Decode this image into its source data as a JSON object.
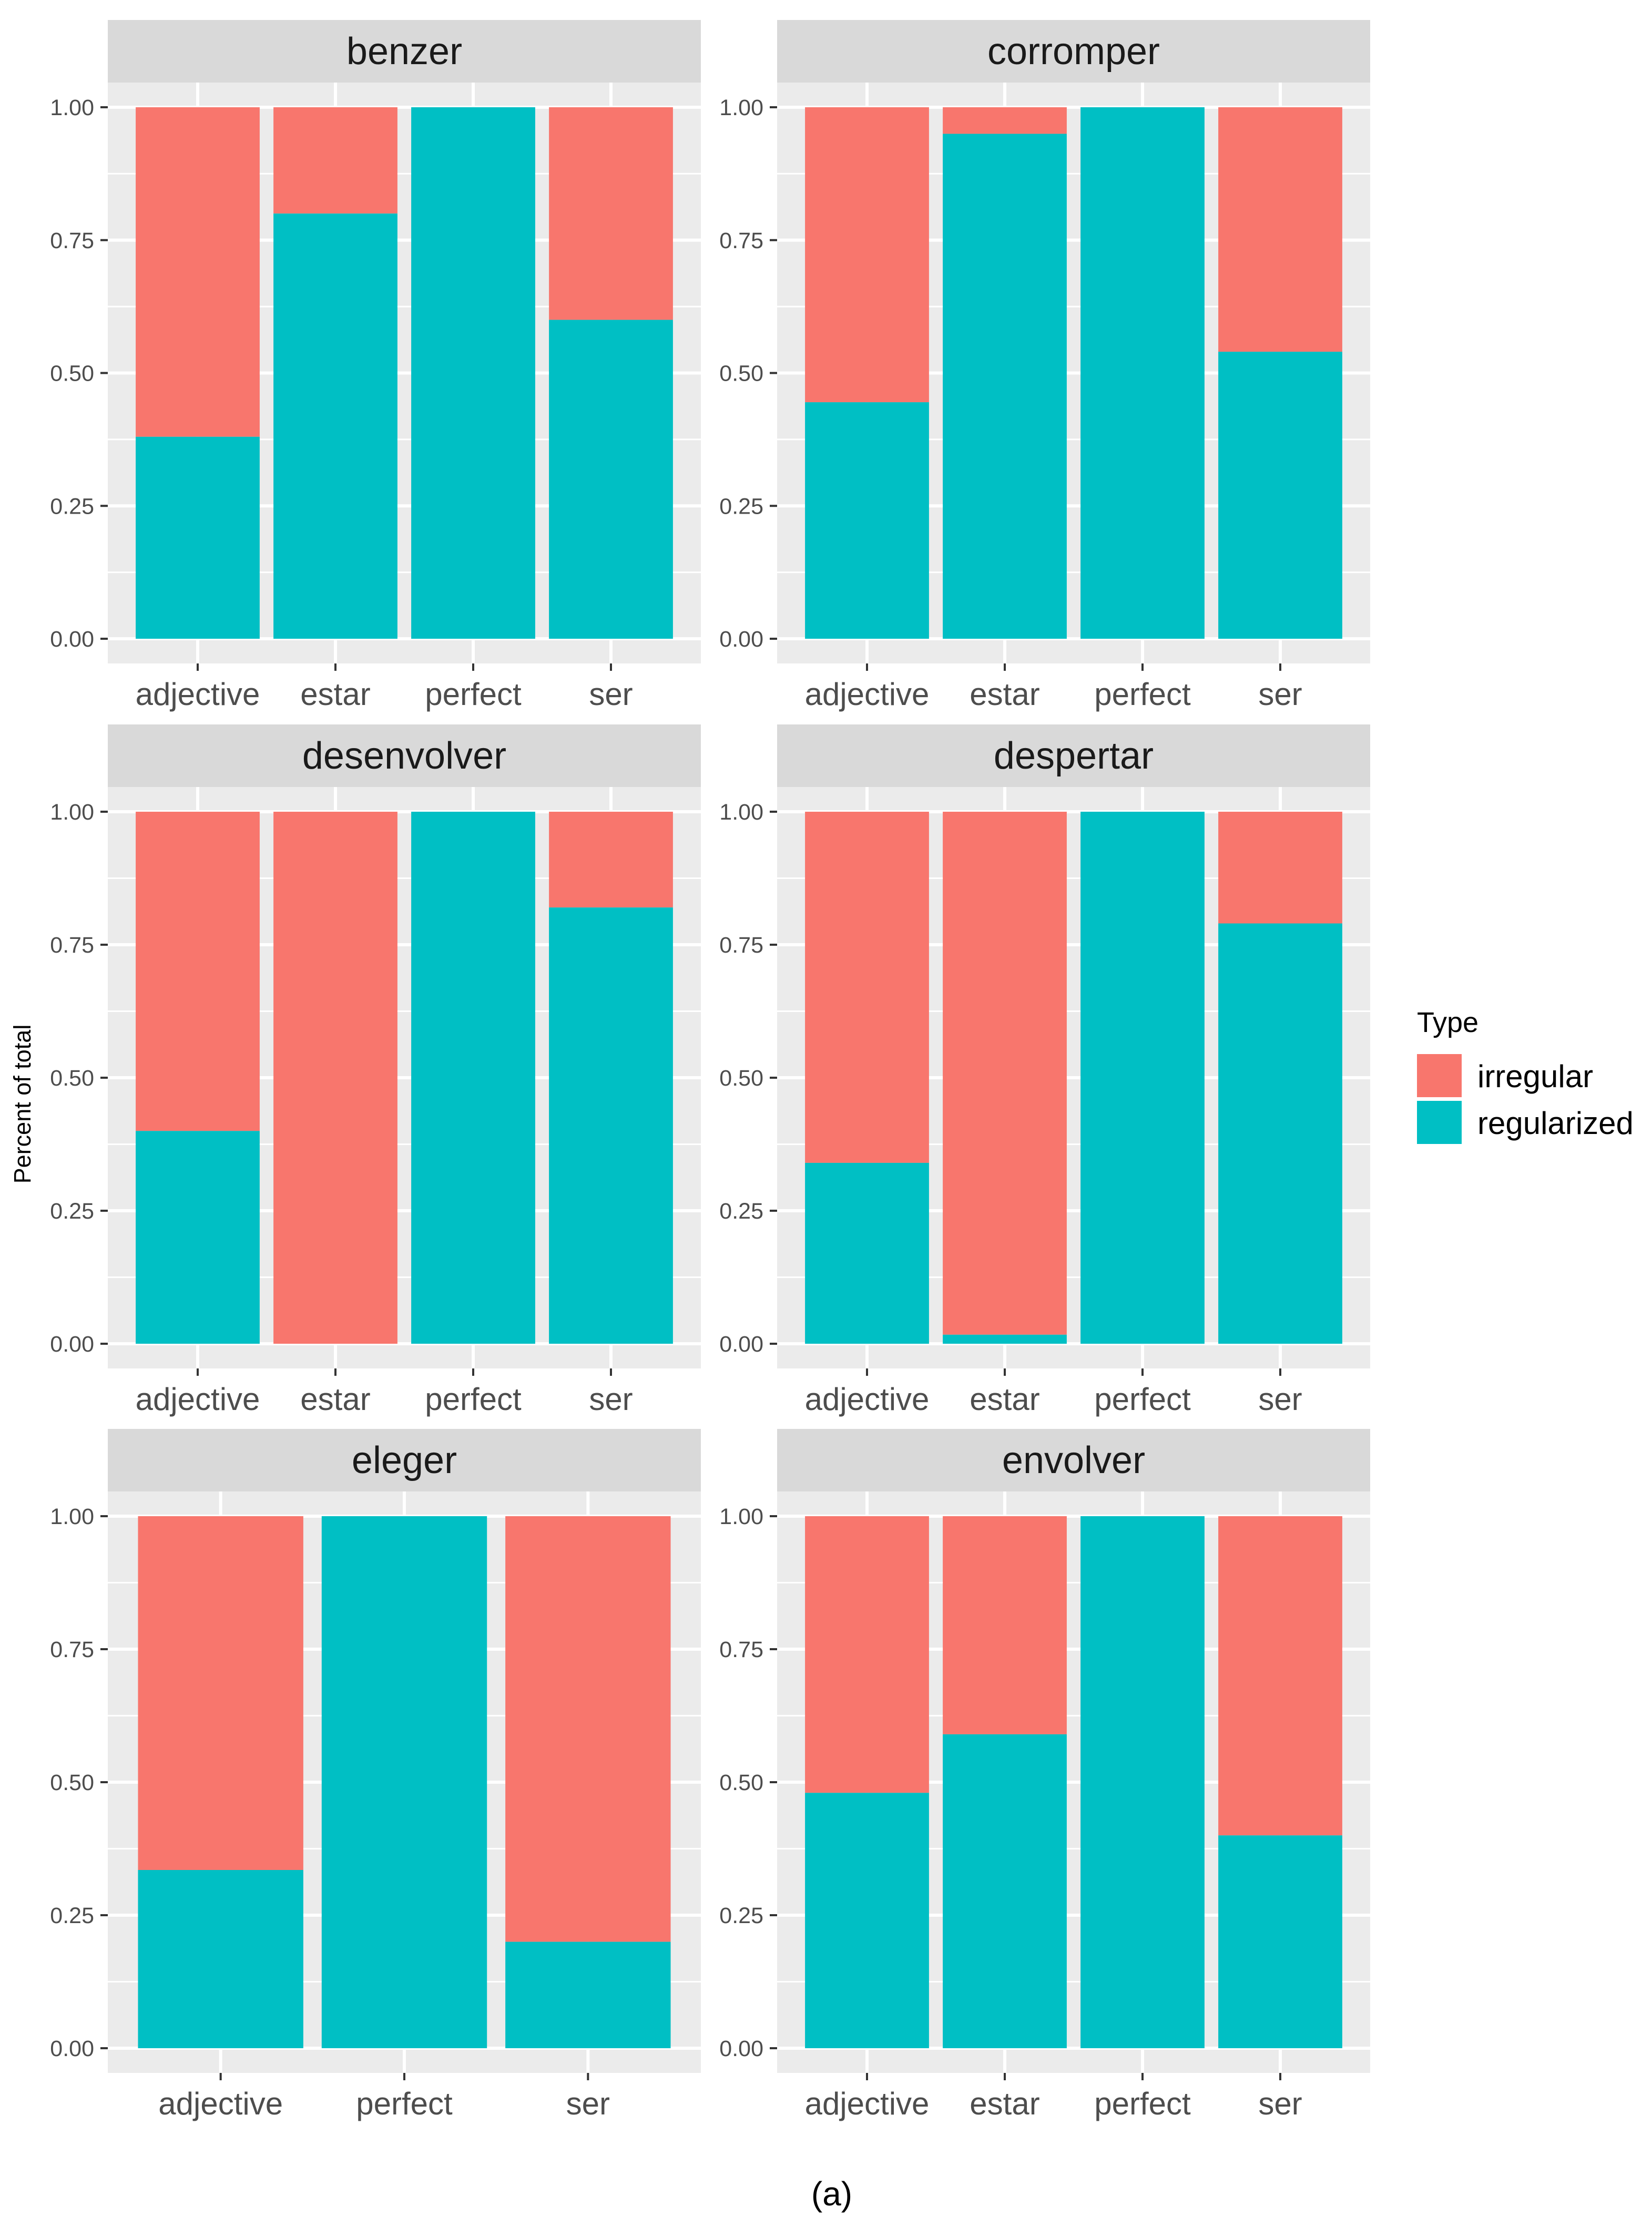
{
  "chart_data": [
    {
      "type": "bar",
      "stacked": true,
      "normalized": true,
      "title": "benzer",
      "categories": [
        "adjective",
        "estar",
        "perfect",
        "ser"
      ],
      "series": [
        {
          "name": "regularized",
          "values": [
            0.38,
            0.8,
            1.0,
            0.6
          ]
        },
        {
          "name": "irregular",
          "values": [
            0.62,
            0.2,
            0.0,
            0.4
          ]
        }
      ],
      "ylim": [
        0,
        1
      ],
      "yticks": [
        "0.00",
        "0.25",
        "0.50",
        "0.75",
        "1.00"
      ]
    },
    {
      "type": "bar",
      "stacked": true,
      "normalized": true,
      "title": "corromper",
      "categories": [
        "adjective",
        "estar",
        "perfect",
        "ser"
      ],
      "series": [
        {
          "name": "regularized",
          "values": [
            0.445,
            0.95,
            1.0,
            0.54
          ]
        },
        {
          "name": "irregular",
          "values": [
            0.555,
            0.05,
            0.0,
            0.46
          ]
        }
      ],
      "ylim": [
        0,
        1
      ],
      "yticks": [
        "0.00",
        "0.25",
        "0.50",
        "0.75",
        "1.00"
      ]
    },
    {
      "type": "bar",
      "stacked": true,
      "normalized": true,
      "title": "desenvolver",
      "categories": [
        "adjective",
        "estar",
        "perfect",
        "ser"
      ],
      "series": [
        {
          "name": "regularized",
          "values": [
            0.4,
            0.0,
            1.0,
            0.82
          ]
        },
        {
          "name": "irregular",
          "values": [
            0.6,
            1.0,
            0.0,
            0.18
          ]
        }
      ],
      "ylim": [
        0,
        1
      ],
      "yticks": [
        "0.00",
        "0.25",
        "0.50",
        "0.75",
        "1.00"
      ]
    },
    {
      "type": "bar",
      "stacked": true,
      "normalized": true,
      "title": "despertar",
      "categories": [
        "adjective",
        "estar",
        "perfect",
        "ser"
      ],
      "series": [
        {
          "name": "regularized",
          "values": [
            0.34,
            0.017,
            1.0,
            0.79
          ]
        },
        {
          "name": "irregular",
          "values": [
            0.66,
            0.983,
            0.0,
            0.21
          ]
        }
      ],
      "ylim": [
        0,
        1
      ],
      "yticks": [
        "0.00",
        "0.25",
        "0.50",
        "0.75",
        "1.00"
      ]
    },
    {
      "type": "bar",
      "stacked": true,
      "normalized": true,
      "title": "eleger",
      "categories": [
        "adjective",
        "perfect",
        "ser"
      ],
      "series": [
        {
          "name": "regularized",
          "values": [
            0.335,
            1.0,
            0.2
          ]
        },
        {
          "name": "irregular",
          "values": [
            0.665,
            0.0,
            0.8
          ]
        }
      ],
      "ylim": [
        0,
        1
      ],
      "yticks": [
        "0.00",
        "0.25",
        "0.50",
        "0.75",
        "1.00"
      ]
    },
    {
      "type": "bar",
      "stacked": true,
      "normalized": true,
      "title": "envolver",
      "categories": [
        "adjective",
        "estar",
        "perfect",
        "ser"
      ],
      "series": [
        {
          "name": "regularized",
          "values": [
            0.48,
            0.59,
            1.0,
            0.4
          ]
        },
        {
          "name": "irregular",
          "values": [
            0.52,
            0.41,
            0.0,
            0.6
          ]
        }
      ],
      "ylim": [
        0,
        1
      ],
      "yticks": [
        "0.00",
        "0.25",
        "0.50",
        "0.75",
        "1.00"
      ]
    }
  ],
  "ylabel": "Percent of total",
  "legend": {
    "title": "Type",
    "items": [
      {
        "label": "irregular",
        "color": "#F8766D"
      },
      {
        "label": "regularized",
        "color": "#00BFC4"
      }
    ]
  },
  "caption": "(a)"
}
